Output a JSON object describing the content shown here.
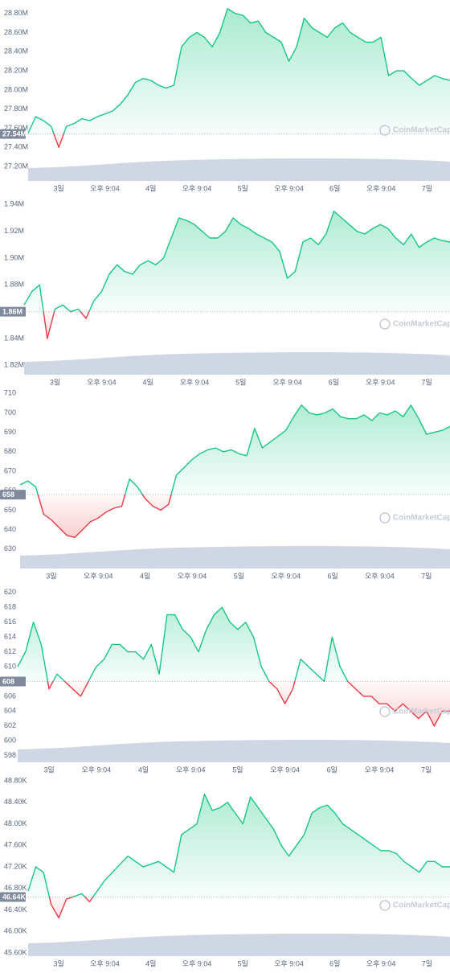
{
  "chart_data": [
    {
      "type": "line",
      "x": [
        -8,
        -6,
        -4,
        -2,
        0,
        2,
        4,
        6,
        8,
        10,
        12,
        14,
        16,
        18,
        20,
        22,
        24,
        26,
        28,
        30,
        32,
        34,
        36,
        38,
        40,
        42,
        44,
        46,
        48,
        50,
        52,
        54,
        56,
        58,
        60,
        62,
        64,
        66,
        68,
        70,
        72,
        74,
        76,
        78,
        80,
        82,
        84,
        86,
        88,
        90,
        92,
        94,
        96,
        98,
        100,
        102
      ],
      "series": [
        {
          "color": "#16c784",
          "negative_color": "#ea3943",
          "values": [
            27.55,
            27.72,
            27.68,
            27.62,
            27.4,
            27.62,
            27.65,
            27.7,
            27.68,
            27.72,
            27.75,
            27.78,
            27.85,
            27.95,
            28.08,
            28.12,
            28.1,
            28.05,
            28.02,
            28.05,
            28.45,
            28.55,
            28.6,
            28.55,
            28.45,
            28.6,
            28.85,
            28.8,
            28.78,
            28.7,
            28.72,
            28.6,
            28.55,
            28.5,
            28.3,
            28.45,
            28.75,
            28.65,
            28.6,
            28.55,
            28.65,
            28.7,
            28.6,
            28.55,
            28.5,
            28.5,
            28.55,
            28.15,
            28.2,
            28.2,
            28.12,
            28.05,
            28.1,
            28.15,
            28.12,
            28.1
          ]
        }
      ],
      "baseline": {
        "value": 27.54,
        "label": "27.54M"
      },
      "xlim": [
        -8,
        102
      ],
      "ylim": [
        27.05,
        28.94
      ],
      "yticks": [
        {
          "value": 27.2,
          "label": "27.20M"
        },
        {
          "value": 27.4,
          "label": "27.40M"
        },
        {
          "value": 27.6,
          "label": "27.60M"
        },
        {
          "value": 27.8,
          "label": "27.80M"
        },
        {
          "value": 28.0,
          "label": "28.00M"
        },
        {
          "value": 28.2,
          "label": "28.20M"
        },
        {
          "value": 28.4,
          "label": "28.40M"
        },
        {
          "value": 28.6,
          "label": "28.60M"
        },
        {
          "value": 28.8,
          "label": "28.80M"
        }
      ],
      "xticks": [
        {
          "value": 0,
          "label": "3일"
        },
        {
          "value": 12,
          "label": "오후 9:04"
        },
        {
          "value": 24,
          "label": "4일"
        },
        {
          "value": 36,
          "label": "오후 9:04"
        },
        {
          "value": 48,
          "label": "5일"
        },
        {
          "value": 60,
          "label": "오후 9:04"
        },
        {
          "value": 72,
          "label": "6일"
        },
        {
          "value": 84,
          "label": "오후 9:04"
        },
        {
          "value": 96,
          "label": "7일"
        }
      ],
      "watermark": "CoinMarketCap",
      "grid": false
    },
    {
      "type": "line",
      "x": [
        -8,
        -6,
        -4,
        -2,
        0,
        2,
        4,
        6,
        8,
        10,
        12,
        14,
        16,
        18,
        20,
        22,
        24,
        26,
        28,
        30,
        32,
        34,
        36,
        38,
        40,
        42,
        44,
        46,
        48,
        50,
        52,
        54,
        56,
        58,
        60,
        62,
        64,
        66,
        68,
        70,
        72,
        74,
        76,
        78,
        80,
        82,
        84,
        86,
        88,
        90,
        92,
        94,
        96,
        98,
        100,
        102
      ],
      "series": [
        {
          "color": "#16c784",
          "negative_color": "#ea3943",
          "values": [
            1.865,
            1.875,
            1.88,
            1.84,
            1.862,
            1.865,
            1.86,
            1.862,
            1.855,
            1.868,
            1.875,
            1.888,
            1.895,
            1.89,
            1.888,
            1.895,
            1.898,
            1.895,
            1.9,
            1.915,
            1.93,
            1.928,
            1.925,
            1.92,
            1.915,
            1.915,
            1.92,
            1.93,
            1.925,
            1.922,
            1.918,
            1.915,
            1.912,
            1.905,
            1.885,
            1.89,
            1.912,
            1.915,
            1.91,
            1.918,
            1.935,
            1.93,
            1.925,
            1.92,
            1.918,
            1.922,
            1.925,
            1.922,
            1.915,
            1.91,
            1.918,
            1.908,
            1.912,
            1.915,
            1.913,
            1.912
          ]
        }
      ],
      "baseline": {
        "value": 1.86,
        "label": "1.86M"
      },
      "xlim": [
        -8,
        102
      ],
      "ylim": [
        1.813,
        1.948
      ],
      "yticks": [
        {
          "value": 1.82,
          "label": "1.82M"
        },
        {
          "value": 1.84,
          "label": "1.84M"
        },
        {
          "value": 1.86,
          "label": "1.86M"
        },
        {
          "value": 1.88,
          "label": "1.88M"
        },
        {
          "value": 1.9,
          "label": "1.90M"
        },
        {
          "value": 1.92,
          "label": "1.92M"
        },
        {
          "value": 1.94,
          "label": "1.94M"
        }
      ],
      "xticks": [
        {
          "value": 0,
          "label": "3일"
        },
        {
          "value": 12,
          "label": "오후 9:04"
        },
        {
          "value": 24,
          "label": "4일"
        },
        {
          "value": 36,
          "label": "오후 9:04"
        },
        {
          "value": 48,
          "label": "5일"
        },
        {
          "value": 60,
          "label": "오후 9:04"
        },
        {
          "value": 72,
          "label": "6일"
        },
        {
          "value": 84,
          "label": "오후 9:04"
        },
        {
          "value": 96,
          "label": "7일"
        }
      ],
      "watermark": "CoinMarketCap",
      "grid": false
    },
    {
      "type": "line",
      "x": [
        -8,
        -6,
        -4,
        -2,
        0,
        2,
        4,
        6,
        8,
        10,
        12,
        14,
        16,
        18,
        20,
        22,
        24,
        26,
        28,
        30,
        32,
        34,
        36,
        38,
        40,
        42,
        44,
        46,
        48,
        50,
        52,
        54,
        56,
        58,
        60,
        62,
        64,
        66,
        68,
        70,
        72,
        74,
        76,
        78,
        80,
        82,
        84,
        86,
        88,
        90,
        92,
        94,
        96,
        98,
        100,
        102
      ],
      "series": [
        {
          "color": "#16c784",
          "negative_color": "#ea3943",
          "values": [
            663,
            665,
            662,
            648,
            645,
            641,
            637,
            636,
            640,
            644,
            646,
            649,
            651,
            652,
            666,
            662,
            656,
            652,
            650,
            653,
            668,
            672,
            676,
            679,
            681,
            682,
            680,
            681,
            679,
            678,
            692,
            682,
            685,
            688,
            691,
            698,
            704,
            700,
            699,
            700,
            702,
            698,
            697,
            697,
            699,
            696,
            700,
            699,
            701,
            698,
            704,
            697,
            689,
            690,
            691,
            693
          ]
        }
      ],
      "baseline": {
        "value": 658,
        "label": "658"
      },
      "xlim": [
        -8,
        102
      ],
      "ylim": [
        620,
        713
      ],
      "yticks": [
        630,
        640,
        650,
        660,
        670,
        680,
        690,
        700,
        710
      ],
      "xticks": [
        {
          "value": 0,
          "label": "3일"
        },
        {
          "value": 12,
          "label": "오후 9:04"
        },
        {
          "value": 24,
          "label": "4일"
        },
        {
          "value": 36,
          "label": "오후 9:04"
        },
        {
          "value": 48,
          "label": "5일"
        },
        {
          "value": 60,
          "label": "오후 9:04"
        },
        {
          "value": 72,
          "label": "6일"
        },
        {
          "value": 84,
          "label": "오후 9:04"
        },
        {
          "value": 96,
          "label": "7일"
        }
      ],
      "watermark": "CoinMarketCap",
      "grid": false
    },
    {
      "type": "line",
      "x": [
        -8,
        -6,
        -4,
        -2,
        0,
        2,
        4,
        6,
        8,
        10,
        12,
        14,
        16,
        18,
        20,
        22,
        24,
        26,
        28,
        30,
        32,
        34,
        36,
        38,
        40,
        42,
        44,
        46,
        48,
        50,
        52,
        54,
        56,
        58,
        60,
        62,
        64,
        66,
        68,
        70,
        72,
        74,
        76,
        78,
        80,
        82,
        84,
        86,
        88,
        90,
        92,
        94,
        96,
        98,
        100,
        102
      ],
      "series": [
        {
          "color": "#16c784",
          "negative_color": "#ea3943",
          "values": [
            610,
            612,
            616,
            613,
            607,
            609,
            608,
            607,
            606,
            608,
            610,
            611,
            613,
            613,
            612,
            612,
            611,
            613,
            609,
            617,
            617,
            615,
            614,
            612,
            615,
            617,
            618,
            616,
            615,
            616,
            614,
            610,
            608,
            607,
            605,
            607,
            611,
            610,
            609,
            608,
            614,
            610,
            608,
            607,
            606,
            606,
            605,
            605,
            604,
            605,
            604,
            603,
            604,
            602,
            604,
            604
          ]
        }
      ],
      "baseline": {
        "value": 608,
        "label": "608"
      },
      "xlim": [
        -8,
        102
      ],
      "ylim": [
        597.1,
        621.5
      ],
      "yticks": [
        598,
        600,
        602,
        604,
        606,
        608,
        610,
        612,
        614,
        616,
        618,
        620
      ],
      "xticks": [
        {
          "value": 0,
          "label": "3일"
        },
        {
          "value": 12,
          "label": "오후 9:04"
        },
        {
          "value": 24,
          "label": "4일"
        },
        {
          "value": 36,
          "label": "오후 9:04"
        },
        {
          "value": 48,
          "label": "5일"
        },
        {
          "value": 60,
          "label": "오후 9:04"
        },
        {
          "value": 72,
          "label": "6일"
        },
        {
          "value": 84,
          "label": "오후 9:04"
        },
        {
          "value": 96,
          "label": "7일"
        }
      ],
      "watermark": "CoinMarketCap",
      "grid": false
    },
    {
      "type": "line",
      "x": [
        -8,
        -6,
        -4,
        -2,
        0,
        2,
        4,
        6,
        8,
        10,
        12,
        14,
        16,
        18,
        20,
        22,
        24,
        26,
        28,
        30,
        32,
        34,
        36,
        38,
        40,
        42,
        44,
        46,
        48,
        50,
        52,
        54,
        56,
        58,
        60,
        62,
        64,
        66,
        68,
        70,
        72,
        74,
        76,
        78,
        80,
        82,
        84,
        86,
        88,
        90,
        92,
        94,
        96,
        98,
        100,
        102
      ],
      "series": [
        {
          "color": "#16c784",
          "negative_color": "#ea3943",
          "values": [
            46.75,
            47.2,
            47.1,
            46.5,
            46.25,
            46.6,
            46.65,
            46.7,
            46.55,
            46.75,
            46.95,
            47.1,
            47.25,
            47.4,
            47.3,
            47.2,
            47.25,
            47.3,
            47.2,
            47.1,
            47.8,
            47.9,
            48.0,
            48.55,
            48.25,
            48.3,
            48.4,
            48.2,
            48.0,
            48.5,
            48.3,
            48.1,
            47.9,
            47.6,
            47.4,
            47.6,
            47.8,
            48.2,
            48.3,
            48.35,
            48.2,
            48.0,
            47.9,
            47.8,
            47.7,
            47.6,
            47.5,
            47.5,
            47.45,
            47.3,
            47.2,
            47.1,
            47.3,
            47.3,
            47.2,
            47.2
          ]
        }
      ],
      "baseline": {
        "value": 46.64,
        "label": "46.64K"
      },
      "xlim": [
        -8,
        102
      ],
      "ylim": [
        45.54,
        48.905
      ],
      "yticks": [
        {
          "value": 45.6,
          "label": "45.60K"
        },
        {
          "value": 46.0,
          "label": "46.00K"
        },
        {
          "value": 46.4,
          "label": "46.40K"
        },
        {
          "value": 46.8,
          "label": "46.80K"
        },
        {
          "value": 47.2,
          "label": "47.20K"
        },
        {
          "value": 47.6,
          "label": "47.60K"
        },
        {
          "value": 48.0,
          "label": "48.00K"
        },
        {
          "value": 48.4,
          "label": "48.40K"
        },
        {
          "value": 48.8,
          "label": "48.80K"
        }
      ],
      "xticks": [
        {
          "value": 0,
          "label": "3일"
        },
        {
          "value": 12,
          "label": "오후 9:04"
        },
        {
          "value": 24,
          "label": "4일"
        },
        {
          "value": 36,
          "label": "오후 9:04"
        },
        {
          "value": 48,
          "label": "5일"
        },
        {
          "value": 60,
          "label": "오후 9:04"
        },
        {
          "value": 72,
          "label": "6일"
        },
        {
          "value": 84,
          "label": "오후 9:04"
        },
        {
          "value": 96,
          "label": "7일"
        }
      ],
      "watermark": "CoinMarketCap",
      "grid": false
    }
  ]
}
